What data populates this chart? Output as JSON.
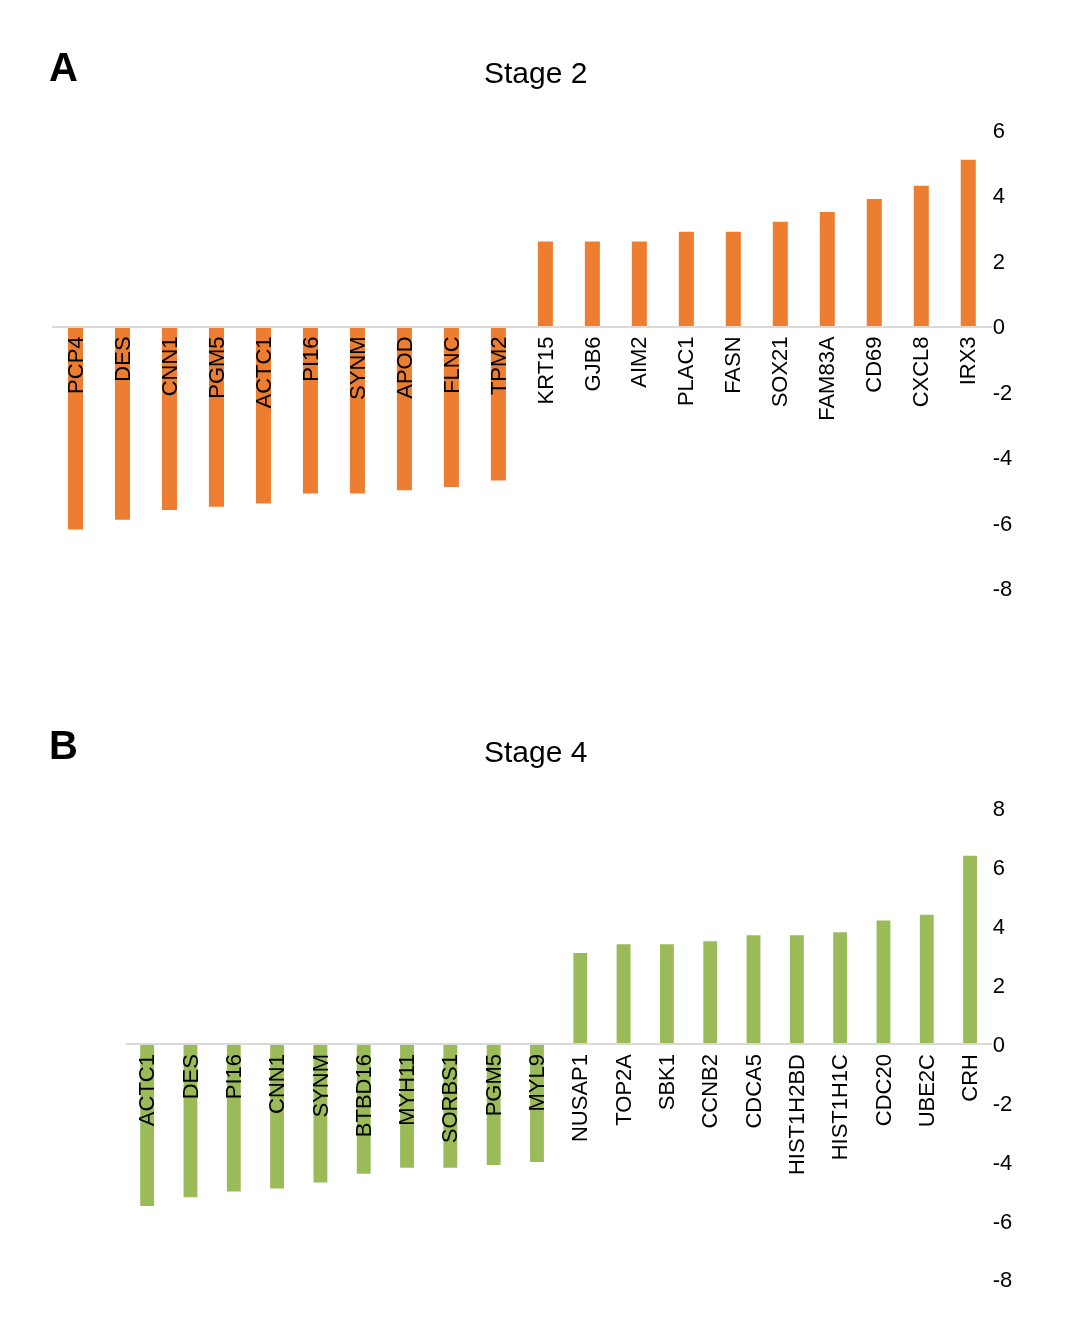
{
  "chart_data": [
    {
      "type": "bar",
      "title": "Stage 2",
      "annotations": [
        "A"
      ],
      "categories": [
        "PCP4",
        "DES",
        "CNN1",
        "PGM5",
        "ACTC1",
        "PI16",
        "SYNM",
        "APOD",
        "FLNC",
        "TPM2",
        "KRT15",
        "GJB6",
        "AIM2",
        "PLAC1",
        "FASN",
        "SOX21",
        "FAM83A",
        "CD69",
        "CXCL8",
        "IRX3"
      ],
      "values": [
        -6.2,
        -5.9,
        -5.6,
        -5.5,
        -5.4,
        -5.1,
        -5.1,
        -5.0,
        -4.9,
        -4.7,
        2.6,
        2.6,
        2.6,
        2.9,
        2.9,
        3.2,
        3.5,
        3.9,
        4.3,
        5.1
      ],
      "color": "#ed7d31",
      "ylim": [
        -8,
        6
      ],
      "yticks": [
        -8,
        -6,
        -4,
        -2,
        0,
        2,
        4,
        6
      ]
    },
    {
      "type": "bar",
      "title": "Stage 4",
      "annotations": [
        "B"
      ],
      "categories": [
        "ACTC1",
        "DES",
        "PI16",
        "CNN1",
        "SYNM",
        "BTBD16",
        "MYH11",
        "SORBS1",
        "PGM5",
        "MYL9",
        "NUSAP1",
        "TOP2A",
        "SBK1",
        "CCNB2",
        "CDCA5",
        "HIST1H2BD",
        "HIST1H1C",
        "CDC20",
        "UBE2C",
        "CRH"
      ],
      "values": [
        -5.5,
        -5.2,
        -5.0,
        -4.9,
        -4.7,
        -4.4,
        -4.2,
        -4.2,
        -4.1,
        -4.0,
        3.1,
        3.4,
        3.4,
        3.5,
        3.7,
        3.7,
        3.8,
        4.2,
        4.4,
        6.4
      ],
      "color": "#9bbb59",
      "ylim": [
        -8,
        8
      ],
      "yticks": [
        -8,
        -6,
        -4,
        -2,
        0,
        2,
        4,
        6,
        8
      ]
    }
  ]
}
